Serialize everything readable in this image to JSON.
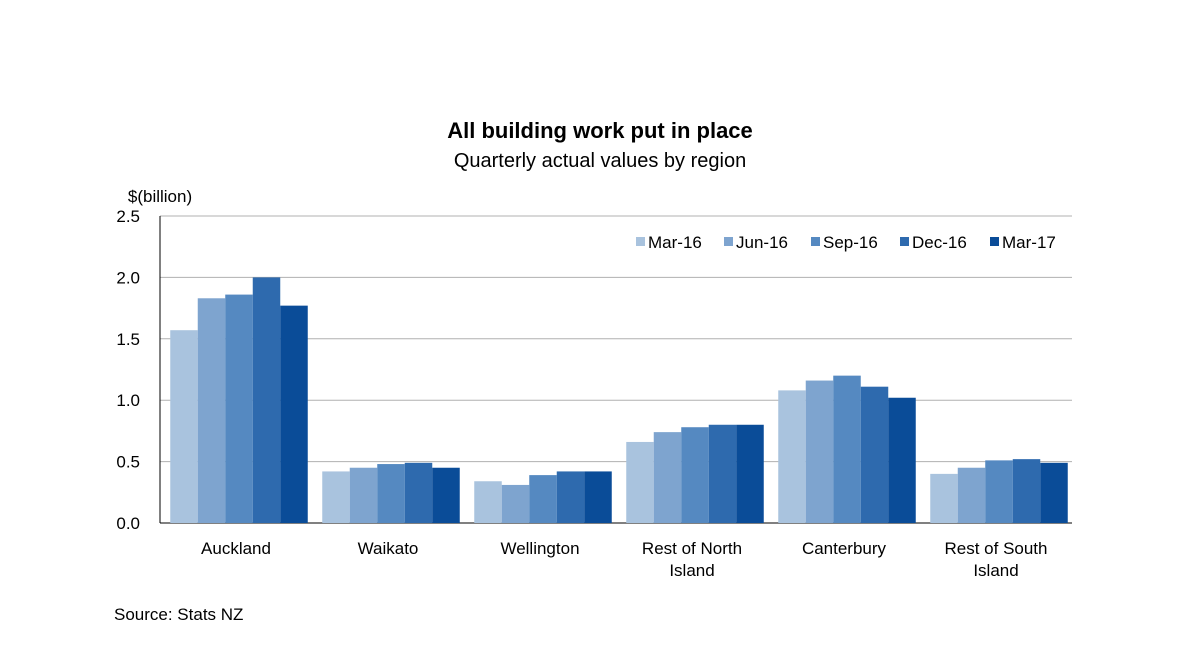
{
  "chart_data": {
    "type": "bar",
    "title": "All building work put in place",
    "subtitle": "Quarterly actual values by region",
    "ylabel": "$(billion)",
    "xlabel": "",
    "ylim": [
      0,
      2.5
    ],
    "yticks": [
      "0.0",
      "0.5",
      "1.0",
      "1.5",
      "2.0",
      "2.5"
    ],
    "grid": true,
    "legend_position": "top-right",
    "categories": [
      [
        "Auckland"
      ],
      [
        "Waikato"
      ],
      [
        "Wellington"
      ],
      [
        "Rest of North",
        "Island"
      ],
      [
        "Canterbury"
      ],
      [
        "Rest of South",
        "Island"
      ]
    ],
    "series": [
      {
        "name": "Mar-16",
        "color": "#a9c3de",
        "values": [
          1.57,
          0.42,
          0.34,
          0.66,
          1.08,
          0.4
        ]
      },
      {
        "name": "Jun-16",
        "color": "#7ea4cf",
        "values": [
          1.83,
          0.45,
          0.31,
          0.74,
          1.16,
          0.45
        ]
      },
      {
        "name": "Sep-16",
        "color": "#5589c1",
        "values": [
          1.86,
          0.48,
          0.39,
          0.78,
          1.2,
          0.51
        ]
      },
      {
        "name": "Dec-16",
        "color": "#2e6aae",
        "values": [
          2.0,
          0.49,
          0.42,
          0.8,
          1.11,
          0.52
        ]
      },
      {
        "name": "Mar-17",
        "color": "#0a4c98",
        "values": [
          1.77,
          0.45,
          0.42,
          0.8,
          1.02,
          0.49
        ]
      }
    ],
    "source": "Source: Stats NZ"
  }
}
